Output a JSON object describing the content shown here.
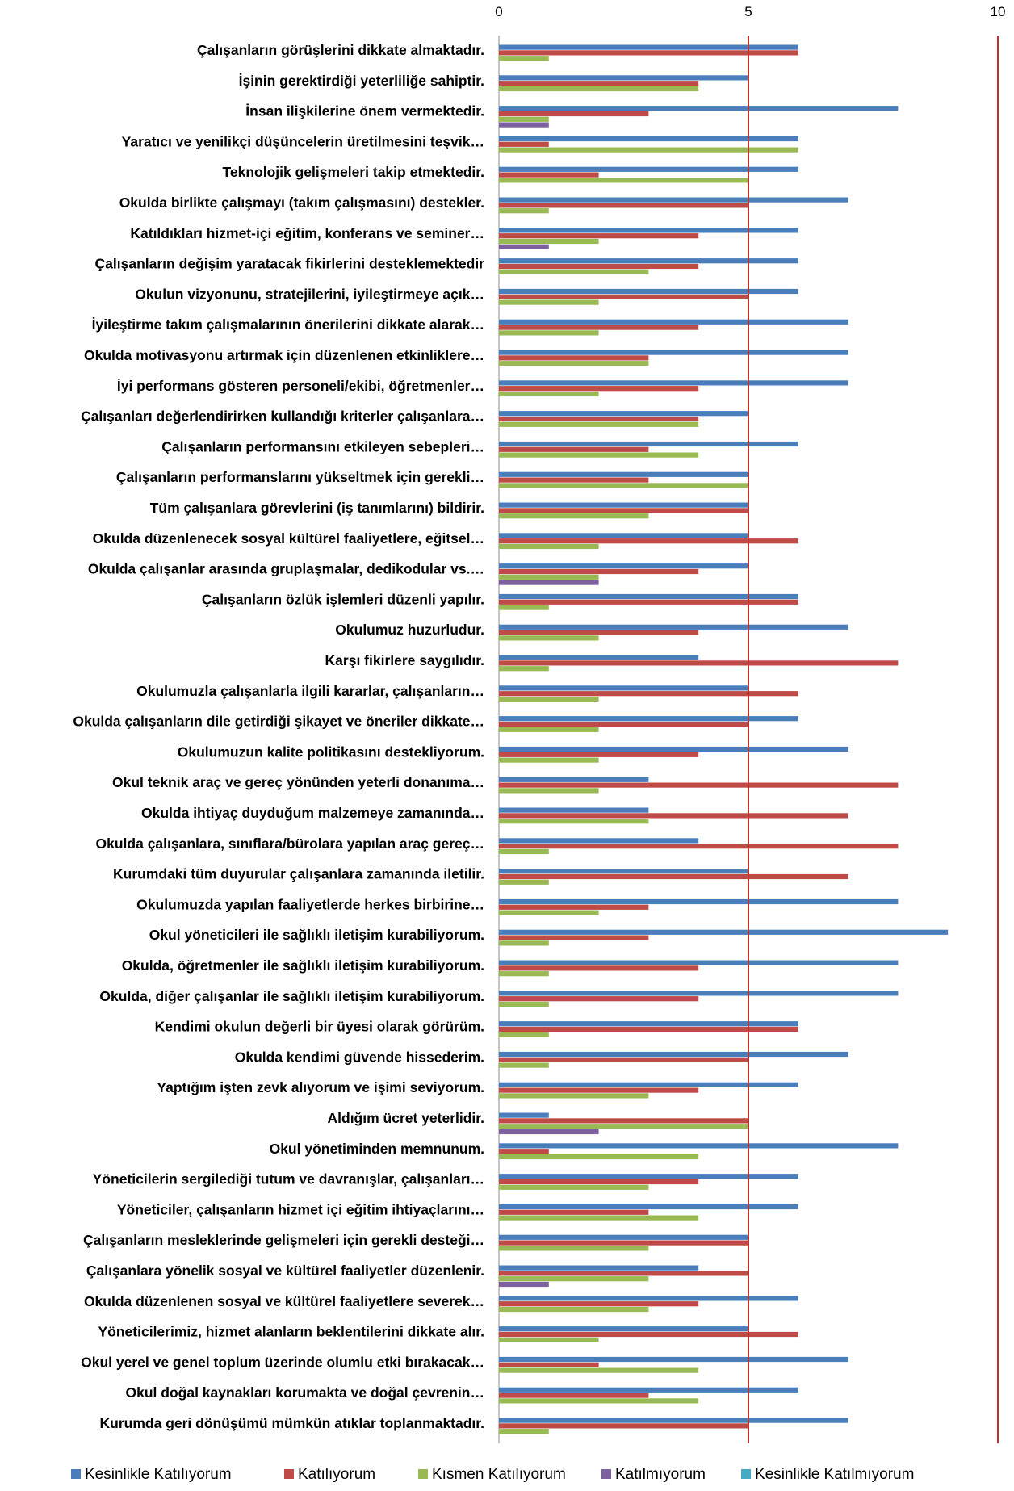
{
  "chart_data": {
    "type": "bar",
    "orientation": "horizontal",
    "xlim": [
      0,
      10
    ],
    "x_ticks": [
      0,
      5,
      10
    ],
    "x_tick_labels": [
      "0",
      "5",
      "10"
    ],
    "reference_lines": [
      5,
      10
    ],
    "reference_line_color": "#c0302b",
    "grid": false,
    "legend_position": "bottom",
    "categories": [
      "Çalışanların görüşlerini dikkate almaktadır.",
      "İşinin gerektirdiği yeterliliğe sahiptir.",
      "İnsan ilişkilerine önem vermektedir.",
      "Yaratıcı ve yenilikçi düşüncelerin üretilmesini teşvik…",
      "Teknolojik gelişmeleri takip etmektedir.",
      "Okulda birlikte çalışmayı (takım çalışmasını) destekler.",
      "Katıldıkları hizmet-içi eğitim, konferans ve seminer…",
      "Çalışanların değişim yaratacak fikirlerini desteklemektedir",
      "Okulun vizyonunu, stratejilerini, iyileştirmeye açık…",
      "İyileştirme takım çalışmalarının önerilerini dikkate alarak…",
      "Okulda motivasyonu artırmak için düzenlenen etkinliklere…",
      "İyi performans gösteren  personeli/ekibi, öğretmenler…",
      "Çalışanları değerlendirirken kullandığı kriterler çalışanlara…",
      "Çalışanların performansını etkileyen sebepleri…",
      "Çalışanların performanslarını yükseltmek için gerekli…",
      "Tüm çalışanlara görevlerini (iş tanımlarını) bildirir.",
      "Okulda düzenlenecek sosyal kültürel faaliyetlere, eğitsel…",
      "Okulda çalışanlar arasında gruplaşmalar, dedikodular vs.…",
      "Çalışanların özlük işlemleri düzenli yapılır.",
      "Okulumuz huzurludur.",
      "Karşı fikirlere saygılıdır.",
      "Okulumuzla çalışanlarla ilgili kararlar, çalışanların…",
      "Okulda çalışanların dile getirdiği şikayet ve öneriler dikkate…",
      "Okulumuzun kalite politikasını destekliyorum.",
      "Okul teknik araç ve gereç yönünden yeterli donanıma…",
      "Okulda ihtiyaç duyduğum malzemeye zamanında…",
      "Okulda çalışanlara, sınıflara/bürolara yapılan araç gereç…",
      "Kurumdaki tüm duyurular çalışanlara zamanında iletilir.",
      "Okulumuzda yapılan faaliyetlerde herkes birbirine…",
      "Okul yöneticileri ile sağlıklı iletişim kurabiliyorum.",
      "Okulda, öğretmenler ile sağlıklı iletişim kurabiliyorum.",
      "Okulda, diğer çalışanlar ile sağlıklı iletişim kurabiliyorum.",
      "Kendimi okulun değerli bir üyesi olarak görürüm.",
      "Okulda kendimi güvende hissederim.",
      "Yaptığım işten zevk alıyorum  ve işimi seviyorum.",
      "Aldığım ücret  yeterlidir.",
      "Okul yönetiminden memnunum.",
      "Yöneticilerin sergilediği tutum ve davranışlar, çalışanları…",
      "Yöneticiler, çalışanların hizmet içi eğitim ihtiyaçlarını…",
      "Çalışanların mesleklerinde gelişmeleri için gerekli desteği…",
      "Çalışanlara yönelik sosyal ve kültürel faaliyetler düzenlenir.",
      "Okulda düzenlenen sosyal ve kültürel faaliyetlere severek…",
      "Yöneticilerimiz, hizmet alanların beklentilerini dikkate alır.",
      "Okul yerel ve genel toplum üzerinde olumlu etki bırakacak…",
      "Okul doğal kaynakları korumakta ve doğal çevrenin…",
      "Kurumda geri dönüşümü mümkün atıklar toplanmaktadır."
    ],
    "series": [
      {
        "name": "Kesinlikle Katılıyorum",
        "color": "#4a7ebb",
        "values": [
          6,
          5,
          8,
          6,
          6,
          7,
          6,
          6,
          6,
          7,
          7,
          7,
          5,
          6,
          5,
          5,
          5,
          5,
          6,
          7,
          4,
          5,
          6,
          7,
          3,
          3,
          4,
          5,
          8,
          9,
          8,
          8,
          6,
          7,
          6,
          1,
          8,
          6,
          6,
          5,
          4,
          6,
          5,
          7,
          6,
          7
        ]
      },
      {
        "name": "Katılıyorum",
        "color": "#be4b48",
        "values": [
          6,
          4,
          3,
          1,
          2,
          5,
          4,
          4,
          5,
          4,
          3,
          4,
          4,
          3,
          3,
          5,
          6,
          4,
          6,
          4,
          8,
          6,
          5,
          4,
          8,
          7,
          8,
          7,
          3,
          3,
          4,
          4,
          6,
          5,
          4,
          5,
          1,
          4,
          3,
          5,
          5,
          4,
          6,
          2,
          3,
          5
        ]
      },
      {
        "name": "Kısmen Katılıyorum",
        "color": "#98b954",
        "values": [
          1,
          4,
          1,
          6,
          5,
          1,
          2,
          3,
          2,
          2,
          3,
          2,
          4,
          4,
          5,
          3,
          2,
          2,
          1,
          2,
          1,
          2,
          2,
          2,
          2,
          3,
          1,
          1,
          2,
          1,
          1,
          1,
          1,
          1,
          3,
          5,
          4,
          3,
          4,
          3,
          3,
          3,
          2,
          4,
          4,
          1
        ]
      },
      {
        "name": "Katılmıyorum",
        "color": "#7d60a0",
        "values": [
          0,
          0,
          1,
          0,
          0,
          0,
          1,
          0,
          0,
          0,
          0,
          0,
          0,
          0,
          0,
          0,
          0,
          2,
          0,
          0,
          0,
          0,
          0,
          0,
          0,
          0,
          0,
          0,
          0,
          0,
          0,
          0,
          0,
          0,
          0,
          2,
          0,
          0,
          0,
          0,
          1,
          0,
          0,
          0,
          0,
          0
        ]
      },
      {
        "name": "Kesinlikle Katılmıyorum",
        "color": "#46aac5",
        "values": [
          0,
          0,
          0,
          0,
          0,
          0,
          0,
          0,
          0,
          0,
          0,
          0,
          0,
          0,
          0,
          0,
          0,
          0,
          0,
          0,
          0,
          0,
          0,
          0,
          0,
          0,
          0,
          0,
          0,
          0,
          0,
          0,
          0,
          0,
          0,
          0,
          0,
          0,
          0,
          0,
          0,
          0,
          0,
          0,
          0,
          0
        ]
      }
    ]
  }
}
